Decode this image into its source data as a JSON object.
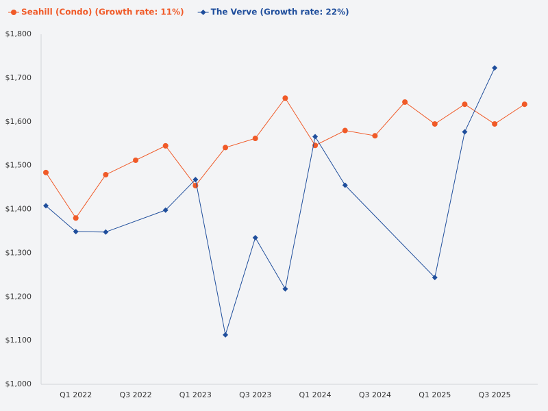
{
  "chart_data": {
    "type": "line",
    "categories": [
      null,
      "Q1 2022",
      null,
      "Q3 2022",
      null,
      "Q1 2023",
      null,
      "Q3 2023",
      null,
      "Q1 2024",
      null,
      "Q3 2024",
      null,
      "Q1 2025",
      null,
      "Q3 2025",
      null
    ],
    "series": [
      {
        "name": "Seahill (Condo) (Growth rate: 11%)",
        "color": "#f05a28",
        "marker": "circle",
        "values": [
          1484,
          1380,
          1479,
          1512,
          1545,
          1454,
          1541,
          1562,
          1654,
          1546,
          1580,
          1568,
          1645,
          1595,
          1640,
          1595,
          1640
        ]
      },
      {
        "name": "The Verve (Growth rate: 22%)",
        "color": "#1f4e9c",
        "marker": "diamond",
        "values": [
          1408,
          1349,
          1348,
          null,
          1398,
          1468,
          1113,
          1335,
          1218,
          1566,
          1455,
          null,
          null,
          1244,
          1577,
          1723,
          null
        ]
      }
    ],
    "connect_gaps": true,
    "ylim": [
      1000,
      1800
    ],
    "yticks": [
      {
        "value": 1000,
        "label": "$1,000"
      },
      {
        "value": 1100,
        "label": "$1,100"
      },
      {
        "value": 1200,
        "label": "$1,200"
      },
      {
        "value": 1300,
        "label": "$1,300"
      },
      {
        "value": 1400,
        "label": "$1,400"
      },
      {
        "value": 1500,
        "label": "$1,500"
      },
      {
        "value": 1600,
        "label": "$1,600"
      },
      {
        "value": 1700,
        "label": "$1,700"
      },
      {
        "value": 1800,
        "label": "$1,800"
      }
    ],
    "grid": false,
    "legend": "top-left"
  }
}
